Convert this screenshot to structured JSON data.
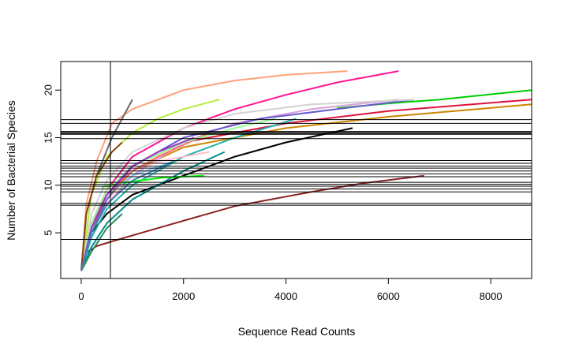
{
  "chart_data": {
    "type": "line",
    "title": "",
    "xlabel": "Sequence Read Counts",
    "ylabel": "Number of Bacterial Species",
    "xlim": [
      -400,
      8800
    ],
    "ylim": [
      0.2,
      23
    ],
    "xticks": [
      0,
      2000,
      4000,
      6000,
      8000
    ],
    "yticks": [
      5,
      10,
      15,
      20
    ],
    "grid": false,
    "legend": "none",
    "vline": 570,
    "hlines": [
      4.3,
      7.9,
      8.1,
      9.3,
      9.6,
      9.9,
      10.1,
      10.3,
      10.9,
      11.2,
      11.5,
      11.8,
      12.0,
      12.3,
      12.6,
      14.9,
      15.35,
      15.45,
      15.55,
      15.65,
      16.5,
      16.9
    ],
    "series": [
      {
        "color": "#8B2323",
        "values": [
          [
            0,
            1
          ],
          [
            100,
            2.9
          ],
          [
            300,
            3.6
          ],
          [
            600,
            4.1
          ],
          [
            1500,
            5.5
          ],
          [
            3000,
            7.8
          ],
          [
            4500,
            9.3
          ],
          [
            5500,
            10.2
          ],
          [
            6700,
            11
          ]
        ]
      },
      {
        "color": "#000000",
        "values": [
          [
            0,
            1
          ],
          [
            200,
            5
          ],
          [
            500,
            7
          ],
          [
            1000,
            9
          ],
          [
            2000,
            11
          ],
          [
            3000,
            13
          ],
          [
            4000,
            14.5
          ],
          [
            5300,
            16
          ]
        ]
      },
      {
        "color": "#DC143C",
        "values": [
          [
            0,
            1
          ],
          [
            200,
            6
          ],
          [
            500,
            9
          ],
          [
            1000,
            12
          ],
          [
            2000,
            14.5
          ],
          [
            4000,
            16.5
          ],
          [
            6000,
            17.8
          ],
          [
            8800,
            19
          ]
        ]
      },
      {
        "color": "#CD8500",
        "values": [
          [
            0,
            1
          ],
          [
            200,
            5.5
          ],
          [
            500,
            8.5
          ],
          [
            1000,
            11.5
          ],
          [
            2000,
            14
          ],
          [
            4000,
            16
          ],
          [
            6000,
            17.2
          ],
          [
            8800,
            18.5
          ]
        ]
      },
      {
        "color": "#00CD00",
        "values": [
          [
            5000,
            18.1
          ],
          [
            6000,
            18.6
          ],
          [
            7000,
            19
          ],
          [
            8800,
            20
          ]
        ]
      },
      {
        "color": "#FF1493",
        "values": [
          [
            0,
            1
          ],
          [
            200,
            6
          ],
          [
            500,
            9.5
          ],
          [
            1000,
            13
          ],
          [
            2000,
            16
          ],
          [
            3000,
            18
          ],
          [
            4000,
            19.5
          ],
          [
            5000,
            20.8
          ],
          [
            6200,
            22
          ]
        ]
      },
      {
        "color": "#FFA07A",
        "values": [
          [
            0,
            1
          ],
          [
            100,
            8
          ],
          [
            300,
            12.5
          ],
          [
            600,
            16.5
          ],
          [
            1000,
            18
          ],
          [
            2000,
            20
          ],
          [
            3000,
            21
          ],
          [
            4000,
            21.6
          ],
          [
            5200,
            22
          ]
        ]
      },
      {
        "color": "#B3EE3A",
        "values": [
          [
            0,
            1
          ],
          [
            200,
            9
          ],
          [
            500,
            13
          ],
          [
            1000,
            15.5
          ],
          [
            1500,
            17
          ],
          [
            2000,
            18
          ],
          [
            2700,
            19
          ]
        ]
      },
      {
        "color": "#696969",
        "values": [
          [
            0,
            1
          ],
          [
            100,
            7
          ],
          [
            300,
            11
          ],
          [
            600,
            15
          ],
          [
            1000,
            19
          ]
        ]
      },
      {
        "color": "#DDA0DD",
        "values": [
          [
            0,
            1
          ],
          [
            200,
            5
          ],
          [
            500,
            8
          ],
          [
            1000,
            11
          ],
          [
            2000,
            14.5
          ],
          [
            3000,
            16.5
          ],
          [
            4500,
            18
          ],
          [
            6200,
            19
          ]
        ]
      },
      {
        "color": "#6A5ACD",
        "values": [
          [
            0,
            1
          ],
          [
            200,
            5
          ],
          [
            500,
            8.5
          ],
          [
            1000,
            12
          ],
          [
            2000,
            15
          ],
          [
            3500,
            17
          ],
          [
            5000,
            18
          ],
          [
            6500,
            19
          ]
        ]
      },
      {
        "color": "#20B2AA",
        "values": [
          [
            0,
            1
          ],
          [
            200,
            4.5
          ],
          [
            500,
            7.5
          ],
          [
            1000,
            10
          ],
          [
            2000,
            13
          ],
          [
            3000,
            15
          ],
          [
            4200,
            17
          ]
        ]
      },
      {
        "color": "#008B8B",
        "values": [
          [
            0,
            1
          ],
          [
            200,
            3.5
          ],
          [
            500,
            6
          ],
          [
            1000,
            8.5
          ],
          [
            2000,
            11.5
          ],
          [
            2800,
            13.5
          ]
        ]
      },
      {
        "color": "#2E8B57",
        "values": [
          [
            0,
            1
          ],
          [
            200,
            3
          ],
          [
            500,
            5.5
          ],
          [
            800,
            7
          ]
        ]
      },
      {
        "color": "#00FF00",
        "values": [
          [
            400,
            9.8
          ],
          [
            1000,
            10.4
          ],
          [
            1600,
            10.8
          ],
          [
            2400,
            11
          ]
        ]
      },
      {
        "color": "#FFC0CB",
        "values": [
          [
            0,
            1
          ],
          [
            200,
            6
          ],
          [
            500,
            9
          ],
          [
            1000,
            11.5
          ],
          [
            1500,
            12.5
          ],
          [
            2500,
            13.5
          ]
        ]
      },
      {
        "color": "#87CEFA",
        "values": [
          [
            0,
            1
          ],
          [
            200,
            6
          ],
          [
            500,
            9
          ],
          [
            1000,
            11
          ],
          [
            1800,
            12.5
          ]
        ]
      },
      {
        "color": "#FF6A6A",
        "values": [
          [
            0,
            1
          ],
          [
            200,
            6
          ],
          [
            500,
            9
          ],
          [
            1000,
            11.5
          ],
          [
            1500,
            13
          ],
          [
            2500,
            15.5
          ]
        ]
      },
      {
        "color": "#98FB98",
        "values": [
          [
            0,
            1
          ],
          [
            200,
            6
          ],
          [
            500,
            9.5
          ],
          [
            1000,
            12
          ],
          [
            2000,
            14.5
          ],
          [
            3000,
            16
          ],
          [
            3800,
            17
          ]
        ]
      },
      {
        "color": "#D3D3D3",
        "values": [
          [
            0,
            1
          ],
          [
            200,
            7
          ],
          [
            500,
            10.5
          ],
          [
            1000,
            13.5
          ],
          [
            2000,
            16
          ],
          [
            3000,
            17.5
          ],
          [
            4500,
            18.5
          ],
          [
            6500,
            19
          ]
        ]
      },
      {
        "color": "#8B4513",
        "values": [
          [
            0,
            1
          ],
          [
            100,
            7
          ],
          [
            300,
            11
          ],
          [
            600,
            13.5
          ],
          [
            800,
            14.5
          ]
        ]
      },
      {
        "color": "#9932CC",
        "values": [
          [
            0,
            1
          ],
          [
            200,
            5.5
          ],
          [
            500,
            9
          ],
          [
            1000,
            12
          ],
          [
            1500,
            13.5
          ],
          [
            2200,
            15
          ]
        ]
      },
      {
        "color": "#4682B4",
        "values": [
          [
            0,
            1
          ],
          [
            200,
            5
          ],
          [
            500,
            8
          ],
          [
            1000,
            10.5
          ],
          [
            1800,
            12.5
          ]
        ]
      }
    ]
  }
}
